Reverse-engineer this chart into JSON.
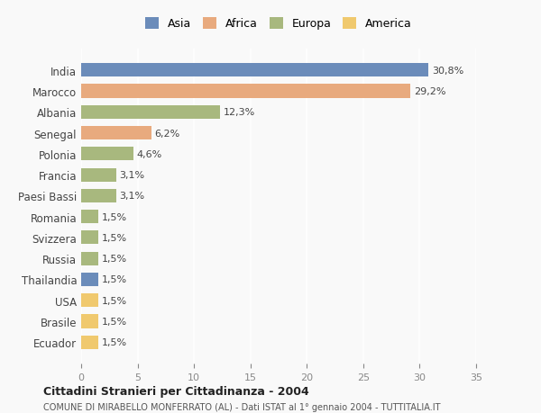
{
  "countries": [
    "India",
    "Marocco",
    "Albania",
    "Senegal",
    "Polonia",
    "Francia",
    "Paesi Bassi",
    "Romania",
    "Svizzera",
    "Russia",
    "Thailandia",
    "USA",
    "Brasile",
    "Ecuador"
  ],
  "values": [
    30.8,
    29.2,
    12.3,
    6.2,
    4.6,
    3.1,
    3.1,
    1.5,
    1.5,
    1.5,
    1.5,
    1.5,
    1.5,
    1.5
  ],
  "labels": [
    "30,8%",
    "29,2%",
    "12,3%",
    "6,2%",
    "4,6%",
    "3,1%",
    "3,1%",
    "1,5%",
    "1,5%",
    "1,5%",
    "1,5%",
    "1,5%",
    "1,5%",
    "1,5%"
  ],
  "continents": [
    "Asia",
    "Africa",
    "Europa",
    "Africa",
    "Europa",
    "Europa",
    "Europa",
    "Europa",
    "Europa",
    "Europa",
    "Asia",
    "America",
    "America",
    "America"
  ],
  "colors": {
    "Asia": "#6b8cba",
    "Africa": "#e8aa7e",
    "Europa": "#a8b87e",
    "America": "#f0c96e"
  },
  "legend_order": [
    "Asia",
    "Africa",
    "Europa",
    "America"
  ],
  "title1": "Cittadini Stranieri per Cittadinanza - 2004",
  "title2": "COMUNE DI MIRABELLO MONFERRATO (AL) - Dati ISTAT al 1° gennaio 2004 - TUTTITALIA.IT",
  "xlim": [
    0,
    35
  ],
  "xticks": [
    0,
    5,
    10,
    15,
    20,
    25,
    30,
    35
  ],
  "background_color": "#f9f9f9",
  "grid_color": "#ffffff"
}
